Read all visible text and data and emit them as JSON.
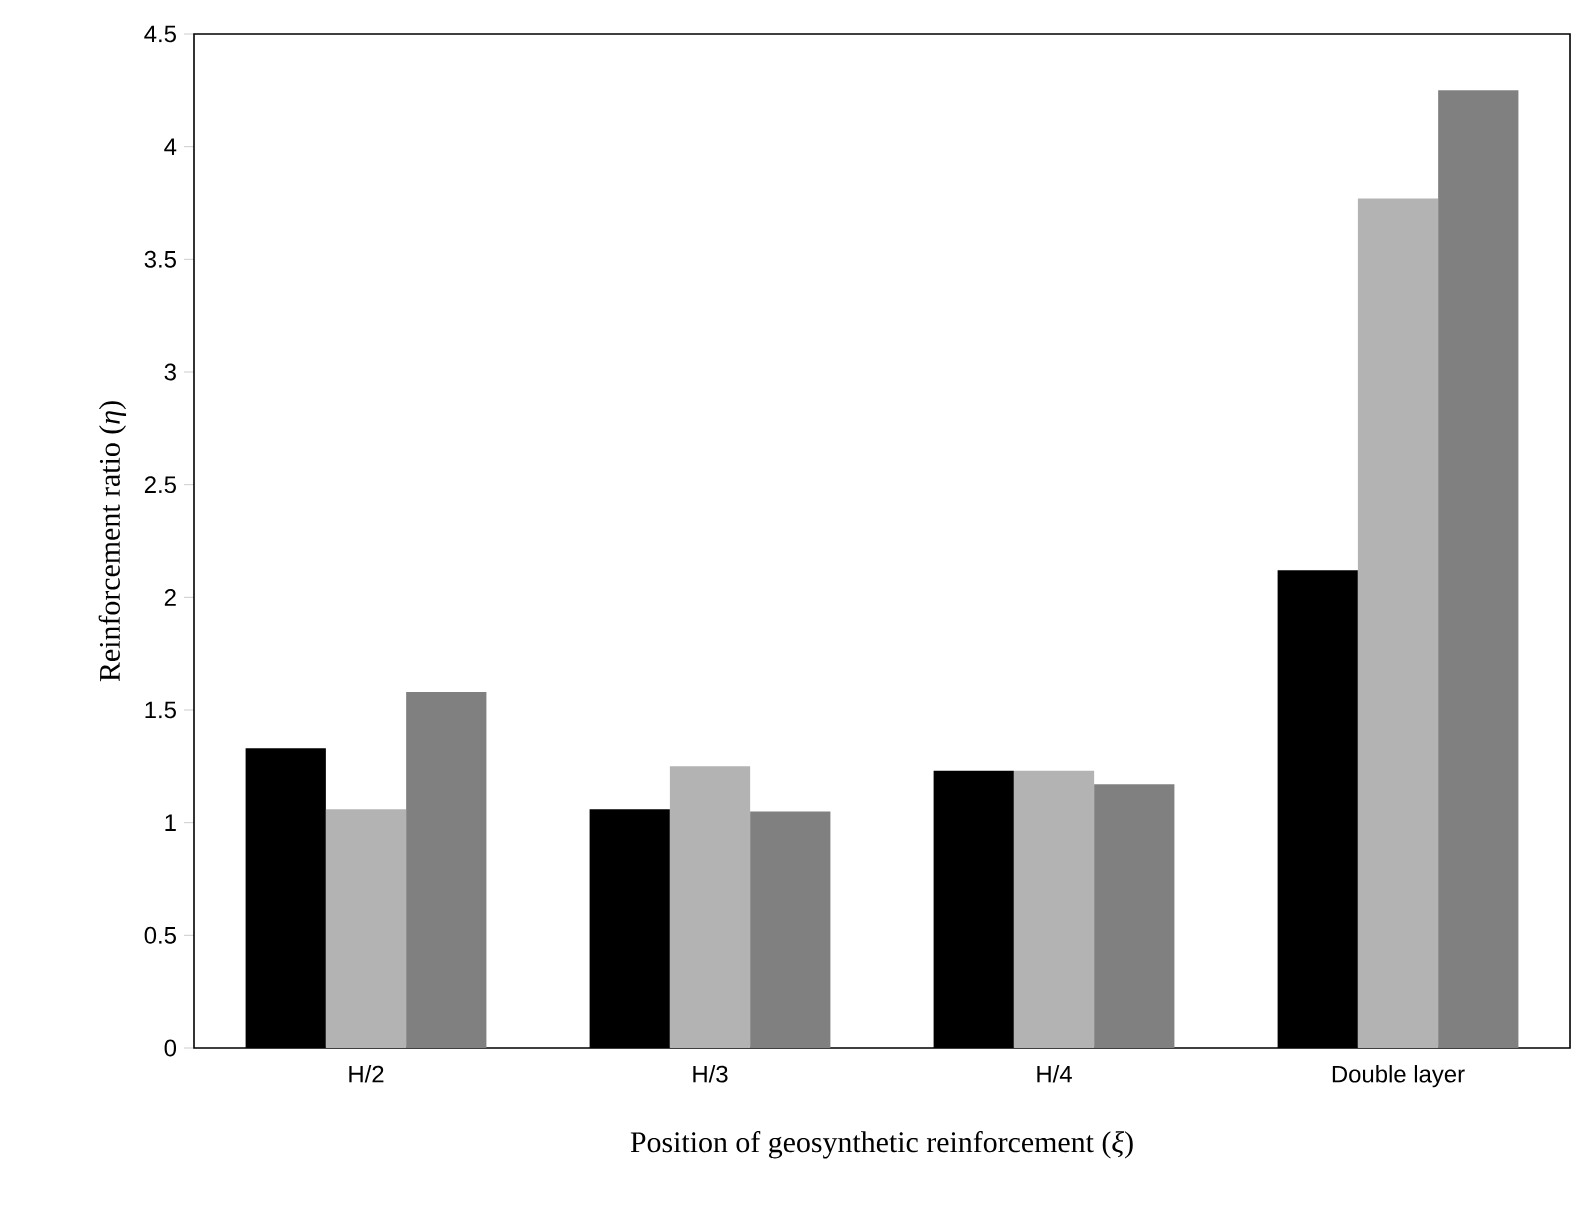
{
  "chart_data": {
    "type": "bar",
    "xlabel": "Position of geosynthetic reinforcement (*ξ*)",
    "ylabel": "Reinforcement ratio (*η*)",
    "categories": [
      "H/2",
      "H/3",
      "H/4",
      "Double layer"
    ],
    "series": [
      {
        "color": "#000000",
        "values": [
          1.33,
          1.06,
          1.23,
          2.12
        ]
      },
      {
        "color": "#b3b3b3",
        "values": [
          1.06,
          1.25,
          1.23,
          3.77
        ]
      },
      {
        "color": "#808080",
        "values": [
          1.58,
          1.05,
          1.17,
          4.25
        ]
      }
    ],
    "ylim": [
      0,
      4.5
    ],
    "yticks": [
      0,
      0.5,
      1,
      1.5,
      2,
      2.5,
      3,
      3.5,
      4,
      4.5
    ]
  }
}
